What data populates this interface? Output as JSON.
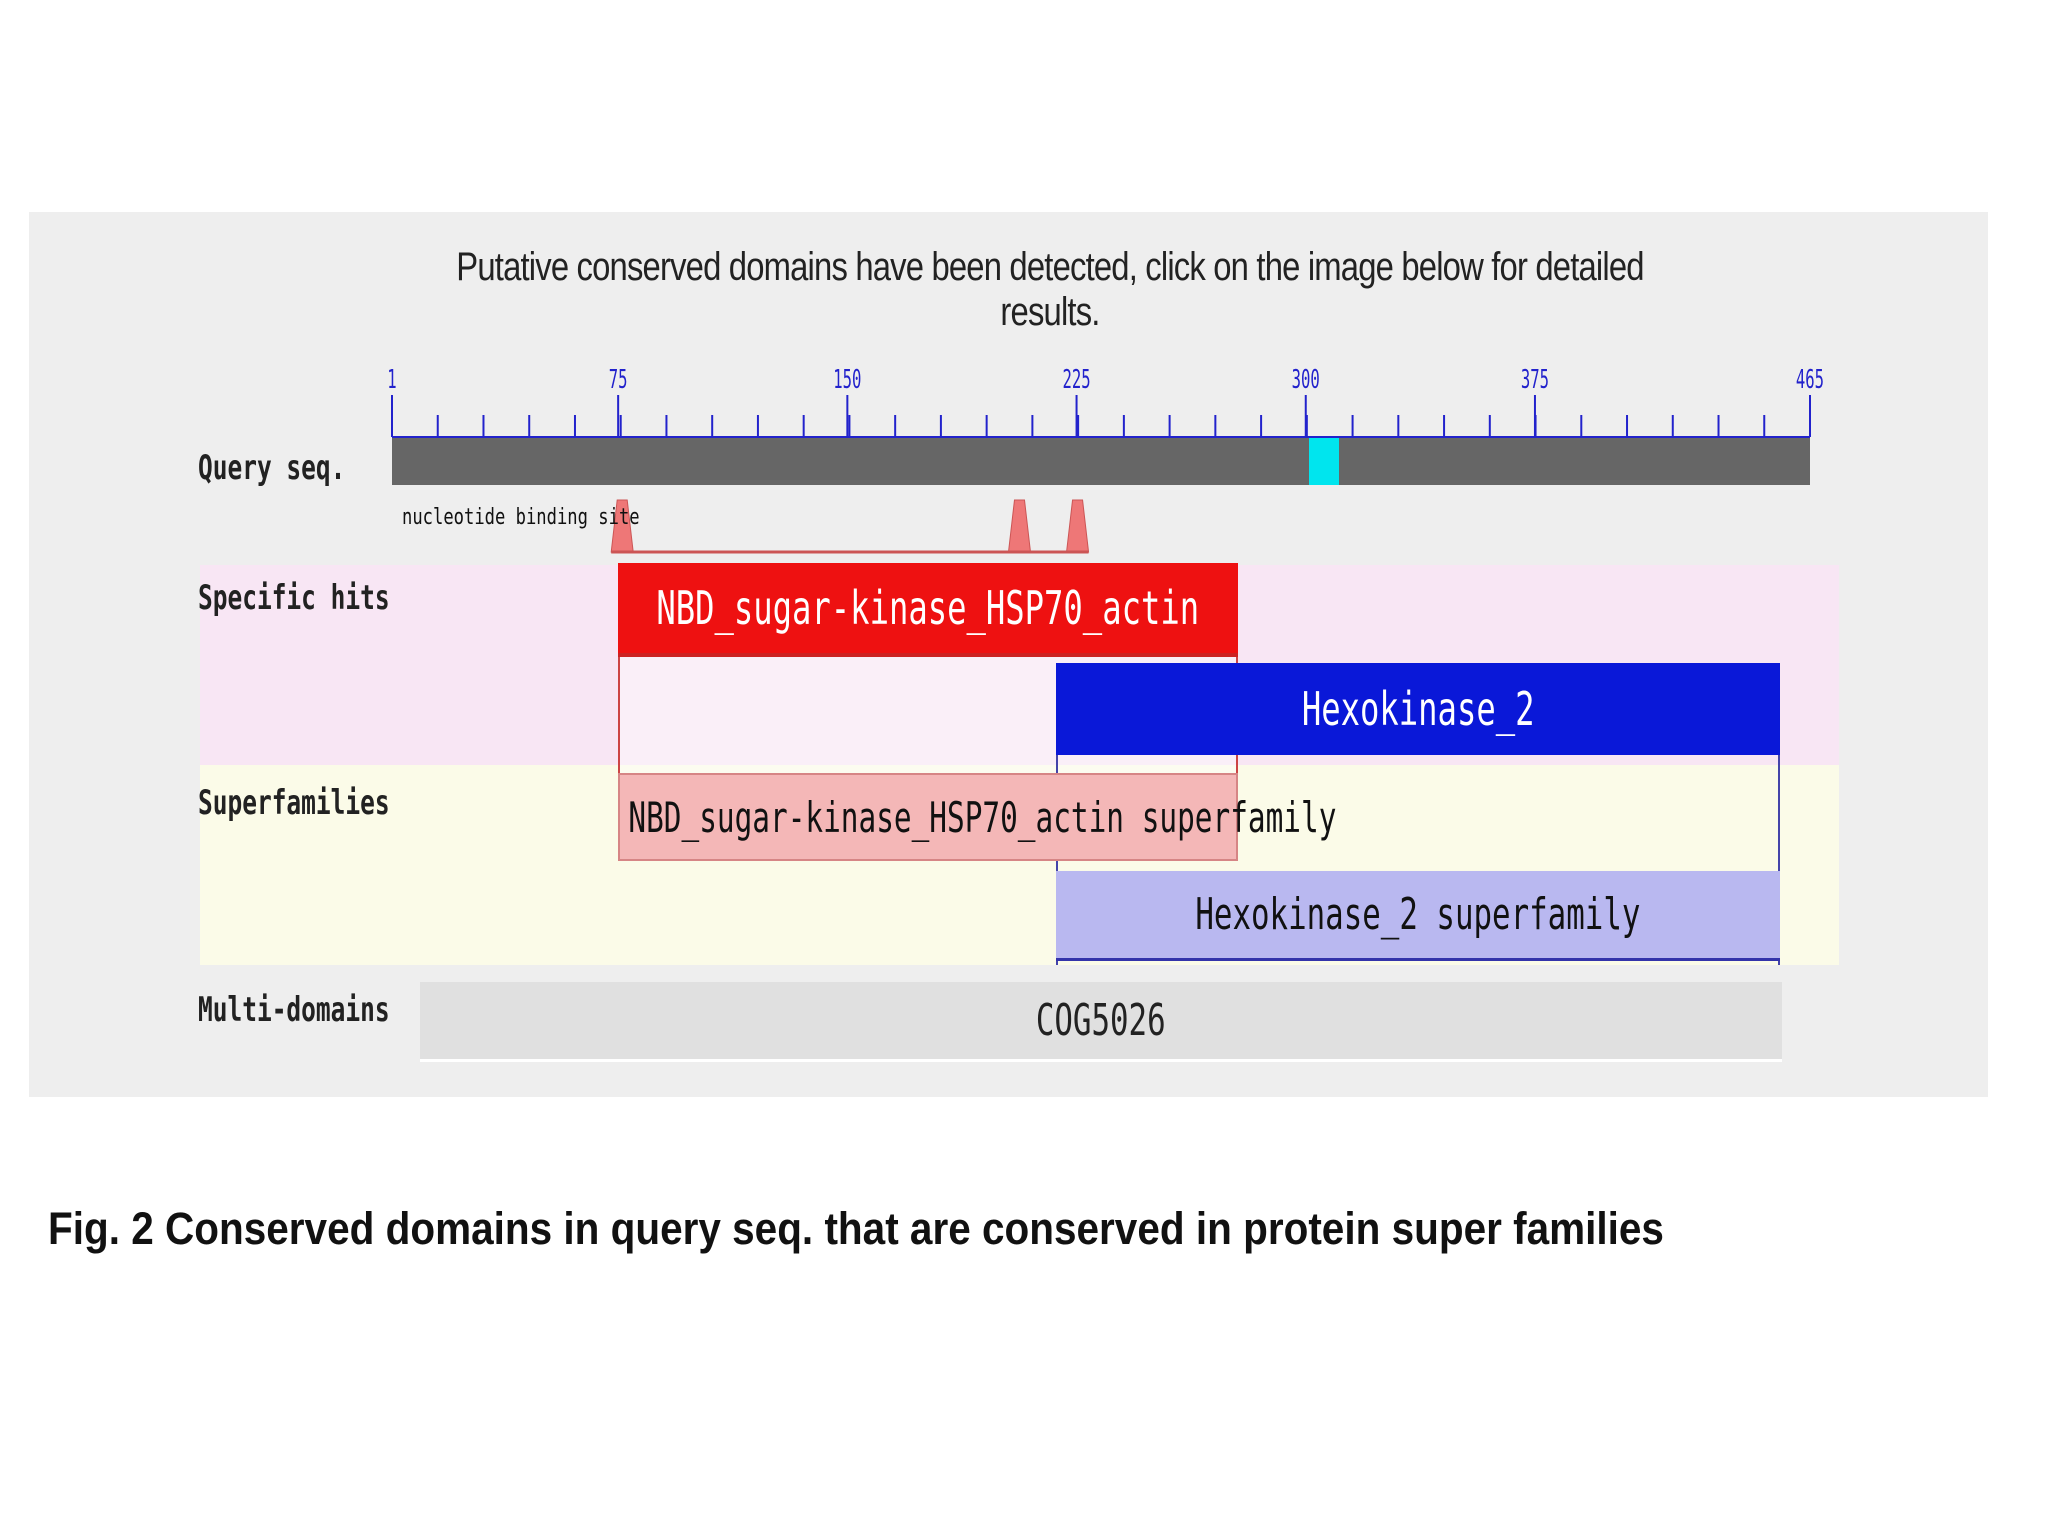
{
  "header": {
    "text": "Putative conserved domains have been detected, click on the image below for detailed results."
  },
  "ruler": {
    "ticks": [
      {
        "pos": 1,
        "label": "1"
      },
      {
        "pos": 75,
        "label": "75"
      },
      {
        "pos": 150,
        "label": "150"
      },
      {
        "pos": 225,
        "label": "225"
      },
      {
        "pos": 300,
        "label": "300"
      },
      {
        "pos": 375,
        "label": "375"
      },
      {
        "pos": 465,
        "label": "465"
      }
    ],
    "max": 465,
    "color": "#2222cc"
  },
  "rows": {
    "query_label": "Query seq.",
    "specific_label": "Specific hits",
    "super_label": "Superfamilies",
    "multi_label": "Multi-domains"
  },
  "query": {
    "highlight_start": 301,
    "highlight_end": 311,
    "bar_color": "#666666",
    "highlight_color": "#00e5ee"
  },
  "site": {
    "label": "nucleotide binding site",
    "markers": [
      {
        "pos": 76,
        "color": "#ee7777"
      },
      {
        "pos": 206,
        "color": "#ee7777"
      },
      {
        "pos": 225,
        "color": "#ee7777"
      }
    ]
  },
  "domains": {
    "nbd_specific": "NBD_sugar-kinase_HSP70_actin",
    "hexo_specific": "Hexokinase_2",
    "nbd_super": "NBD_sugar-kinase_HSP70_actin superfamily",
    "hexo_super": "Hexokinase_2 superfamily",
    "multi": "COG5026"
  },
  "caption": {
    "text": "Fig. 2 Conserved domains in query seq. that are conserved in protein super families"
  }
}
